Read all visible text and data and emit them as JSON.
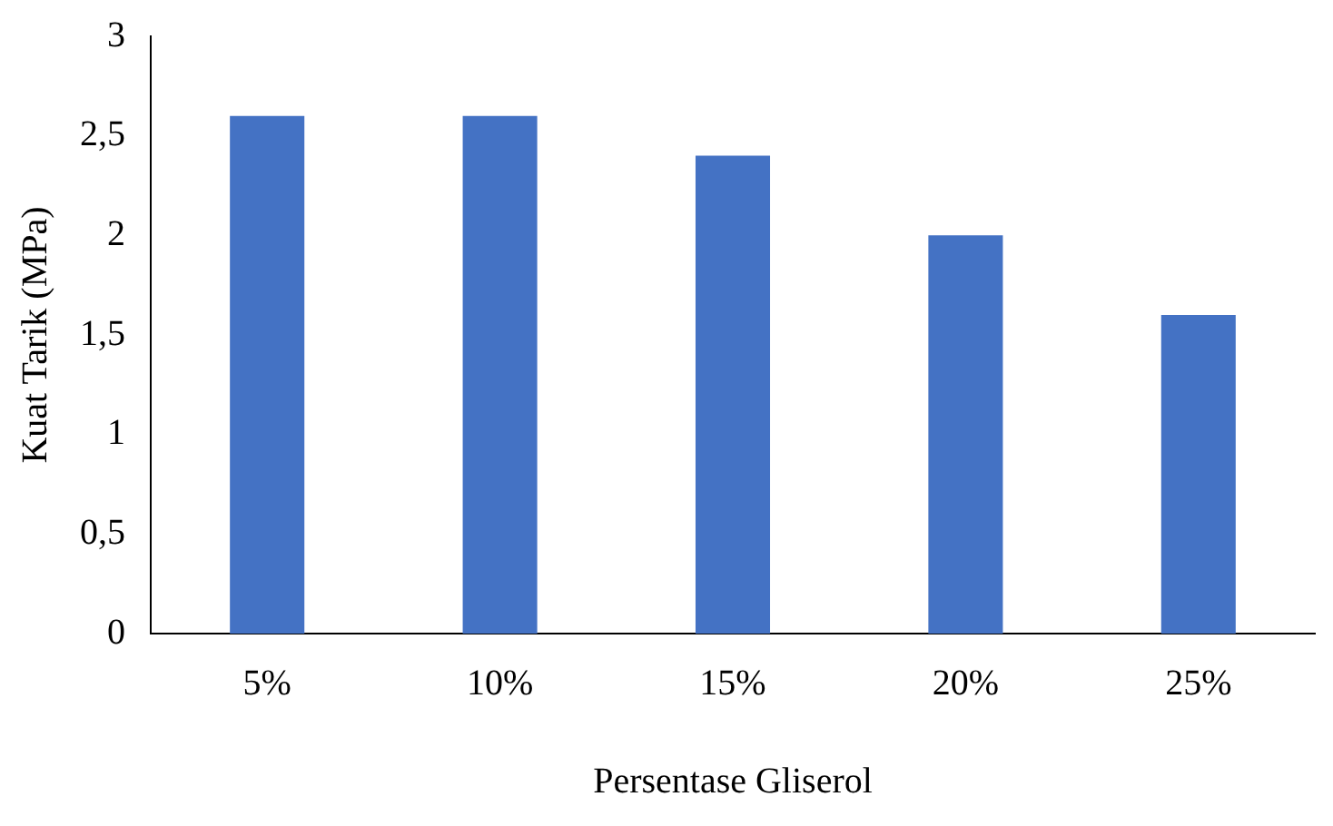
{
  "chart_data": {
    "type": "bar",
    "xlabel": "Persentase Gliserol",
    "ylabel": "Kuat Tarik (MPa)",
    "categories": [
      "5%",
      "10%",
      "15%",
      "20%",
      "25%"
    ],
    "values": [
      2.6,
      2.6,
      2.4,
      2.0,
      1.6
    ],
    "color": "#4472c4",
    "ylim": [
      0,
      3
    ],
    "yticks": [
      0,
      {
        "value": 0.5,
        "label": "0,5"
      },
      1,
      {
        "value": 1.5,
        "label": "1,5"
      },
      2,
      {
        "value": 2.5,
        "label": "2,5"
      },
      3
    ],
    "grid": false,
    "legend": false
  }
}
